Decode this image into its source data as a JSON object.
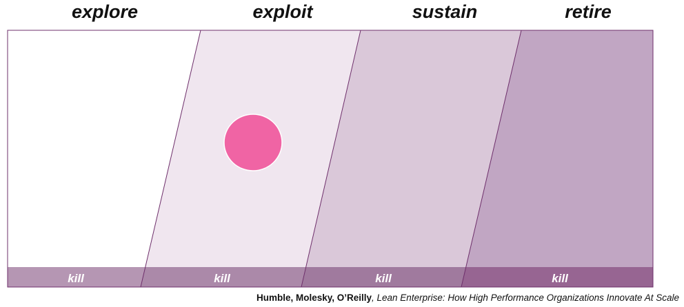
{
  "stages": [
    {
      "label": "explore",
      "kill": "kill"
    },
    {
      "label": "exploit",
      "kill": "kill"
    },
    {
      "label": "sustain",
      "kill": "kill"
    },
    {
      "label": "retire",
      "kill": "kill"
    }
  ],
  "caption": {
    "authors": "Humble, Molesky, O’Reilly",
    "title": ", Lean Enterprise: How High Performance Organizations Innovate At Scale"
  }
}
